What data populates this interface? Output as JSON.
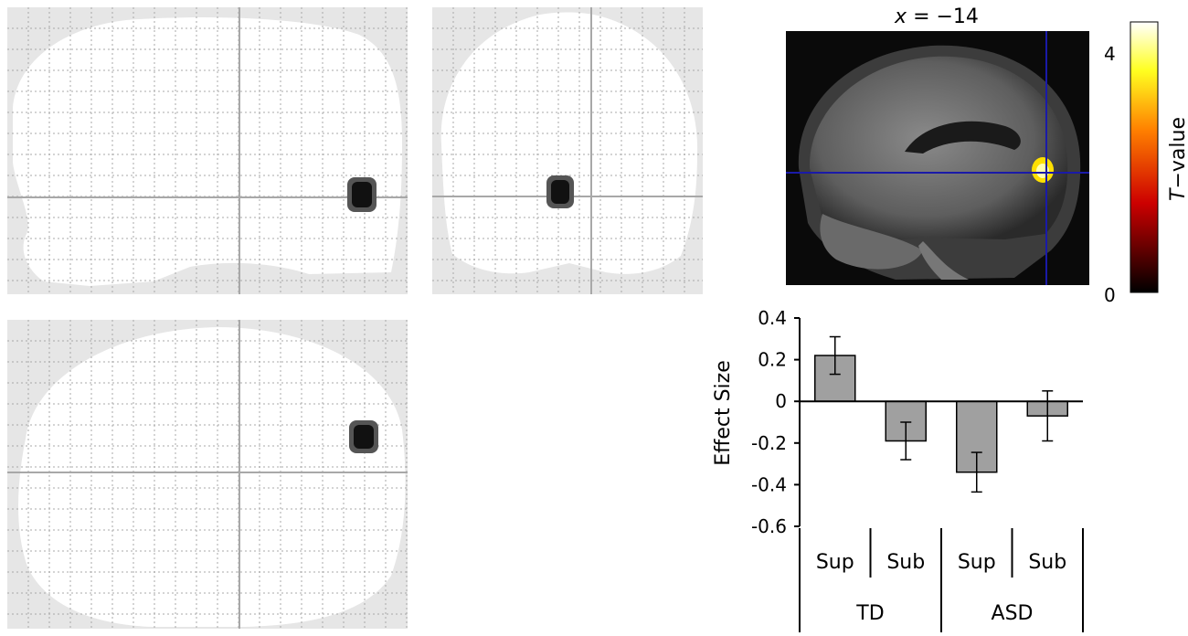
{
  "slice_label": {
    "var": "x",
    "rest": " = −14"
  },
  "colorbar": {
    "max_label": "4",
    "min_label": "0",
    "title_var": "T",
    "title_rest": "−value"
  },
  "colors": {
    "glass_bg": "#e6e6e6",
    "glass_brain": "#ffffff",
    "grid_line": "#a8a8a8",
    "bar_fill": "#a0a0a0",
    "crosshair": "#1a1aa8",
    "activation": "#ffe000"
  },
  "chart_data": {
    "type": "bar",
    "ylabel": "Effect Size",
    "ylim": [
      -0.6,
      0.4
    ],
    "yticks": [
      0.4,
      0.2,
      0,
      -0.2,
      -0.4,
      -0.6
    ],
    "ytick_labels": [
      "0.4",
      "0.2",
      "0",
      "-0.2",
      "-0.4",
      "-0.6"
    ],
    "categories": [
      "Sup",
      "Sub",
      "Sup",
      "Sub"
    ],
    "groups": [
      {
        "label": "TD",
        "span": [
          0,
          1
        ]
      },
      {
        "label": "ASD",
        "span": [
          2,
          3
        ]
      }
    ],
    "values": [
      0.22,
      -0.19,
      -0.34,
      -0.07
    ],
    "errors": [
      0.09,
      0.09,
      0.095,
      0.12
    ]
  }
}
